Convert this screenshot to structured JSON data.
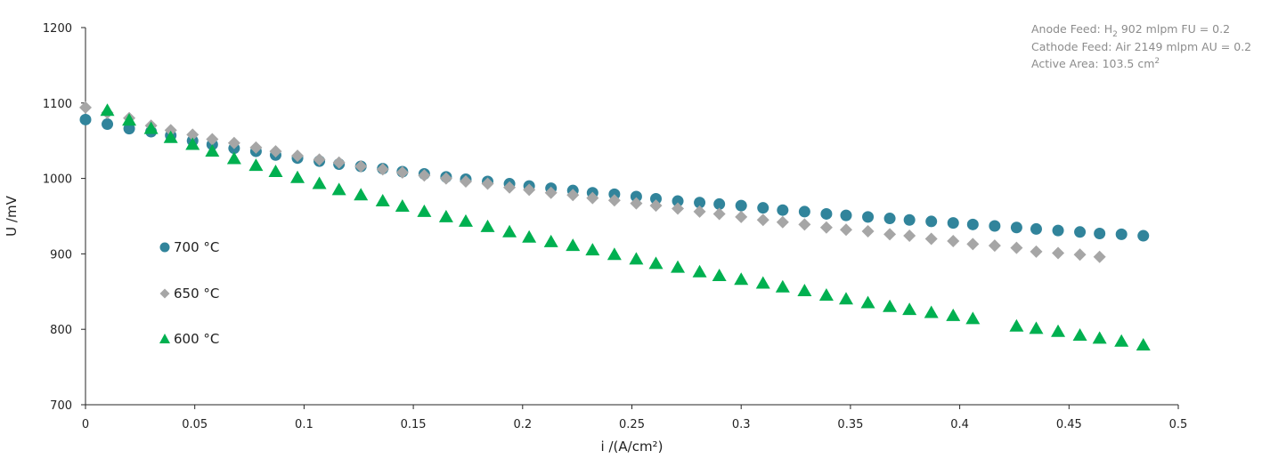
{
  "chart_data": {
    "type": "scatter",
    "xlabel": "i /(A/cm²)",
    "ylabel": "U /mV",
    "xlim": [
      0,
      0.5
    ],
    "ylim": [
      700,
      1200
    ],
    "x_ticks": [
      0,
      0.05,
      0.1,
      0.15,
      0.2,
      0.25,
      0.3,
      0.35,
      0.4,
      0.45,
      0.5
    ],
    "x_tick_labels": [
      "0",
      "0.05",
      "0.1",
      "0.15",
      "0.2",
      "0.25",
      "0.3",
      "0.35",
      "0.4",
      "0.45",
      "0.5"
    ],
    "y_ticks": [
      700,
      800,
      900,
      1000,
      1100,
      1200
    ],
    "y_tick_labels": [
      "700",
      "800",
      "900",
      "1000",
      "1100",
      "1200"
    ],
    "grid": false,
    "legend_position": "left",
    "series": [
      {
        "name": "700 °C",
        "marker": "circle",
        "color": "#31849b",
        "points": [
          [
            0,
            1078
          ],
          [
            0.01,
            1072
          ],
          [
            0.02,
            1066
          ],
          [
            0.03,
            1062
          ],
          [
            0.039,
            1057
          ],
          [
            0.049,
            1050
          ],
          [
            0.058,
            1045
          ],
          [
            0.068,
            1040
          ],
          [
            0.078,
            1036
          ],
          [
            0.087,
            1031
          ],
          [
            0.097,
            1027
          ],
          [
            0.107,
            1023
          ],
          [
            0.116,
            1019
          ],
          [
            0.126,
            1016
          ],
          [
            0.136,
            1013
          ],
          [
            0.145,
            1009
          ],
          [
            0.155,
            1006
          ],
          [
            0.165,
            1002
          ],
          [
            0.174,
            999
          ],
          [
            0.184,
            996
          ],
          [
            0.194,
            993
          ],
          [
            0.203,
            990
          ],
          [
            0.213,
            987
          ],
          [
            0.223,
            984
          ],
          [
            0.232,
            981
          ],
          [
            0.242,
            979
          ],
          [
            0.252,
            976
          ],
          [
            0.261,
            973
          ],
          [
            0.271,
            970
          ],
          [
            0.281,
            968
          ],
          [
            0.29,
            966
          ],
          [
            0.3,
            964
          ],
          [
            0.31,
            961
          ],
          [
            0.319,
            958
          ],
          [
            0.329,
            956
          ],
          [
            0.339,
            953
          ],
          [
            0.348,
            951
          ],
          [
            0.358,
            949
          ],
          [
            0.368,
            947
          ],
          [
            0.377,
            945
          ],
          [
            0.387,
            943
          ],
          [
            0.397,
            941
          ],
          [
            0.406,
            939
          ],
          [
            0.416,
            937
          ],
          [
            0.426,
            935
          ],
          [
            0.435,
            933
          ],
          [
            0.445,
            931
          ],
          [
            0.455,
            929
          ],
          [
            0.464,
            927
          ],
          [
            0.474,
            926
          ],
          [
            0.484,
            924
          ]
        ]
      },
      {
        "name": "650 °C",
        "marker": "diamond",
        "color": "#a6a6a6",
        "points": [
          [
            0,
            1094
          ],
          [
            0.01,
            1087
          ],
          [
            0.02,
            1080
          ],
          [
            0.03,
            1070
          ],
          [
            0.039,
            1064
          ],
          [
            0.049,
            1058
          ],
          [
            0.058,
            1052
          ],
          [
            0.068,
            1047
          ],
          [
            0.078,
            1041
          ],
          [
            0.087,
            1036
          ],
          [
            0.097,
            1030
          ],
          [
            0.107,
            1025
          ],
          [
            0.116,
            1021
          ],
          [
            0.126,
            1016
          ],
          [
            0.136,
            1012
          ],
          [
            0.145,
            1008
          ],
          [
            0.155,
            1004
          ],
          [
            0.165,
            1000
          ],
          [
            0.174,
            996
          ],
          [
            0.184,
            993
          ],
          [
            0.194,
            988
          ],
          [
            0.203,
            985
          ],
          [
            0.213,
            981
          ],
          [
            0.223,
            978
          ],
          [
            0.232,
            974
          ],
          [
            0.242,
            971
          ],
          [
            0.252,
            967
          ],
          [
            0.261,
            964
          ],
          [
            0.271,
            960
          ],
          [
            0.281,
            956
          ],
          [
            0.29,
            953
          ],
          [
            0.3,
            949
          ],
          [
            0.31,
            945
          ],
          [
            0.319,
            942
          ],
          [
            0.329,
            939
          ],
          [
            0.339,
            935
          ],
          [
            0.348,
            932
          ],
          [
            0.358,
            930
          ],
          [
            0.368,
            926
          ],
          [
            0.377,
            924
          ],
          [
            0.387,
            920
          ],
          [
            0.397,
            917
          ],
          [
            0.406,
            913
          ],
          [
            0.416,
            911
          ],
          [
            0.426,
            908
          ],
          [
            0.435,
            903
          ],
          [
            0.445,
            901
          ],
          [
            0.455,
            899
          ],
          [
            0.464,
            896
          ]
        ]
      },
      {
        "name": "600 °C",
        "marker": "triangle",
        "color": "#00b050",
        "points": [
          [
            0.01,
            1090
          ],
          [
            0.02,
            1077
          ],
          [
            0.03,
            1066
          ],
          [
            0.039,
            1054
          ],
          [
            0.049,
            1045
          ],
          [
            0.058,
            1036
          ],
          [
            0.068,
            1026
          ],
          [
            0.078,
            1017
          ],
          [
            0.087,
            1009
          ],
          [
            0.097,
            1001
          ],
          [
            0.107,
            993
          ],
          [
            0.116,
            985
          ],
          [
            0.126,
            978
          ],
          [
            0.136,
            970
          ],
          [
            0.145,
            963
          ],
          [
            0.155,
            956
          ],
          [
            0.165,
            949
          ],
          [
            0.174,
            943
          ],
          [
            0.184,
            936
          ],
          [
            0.194,
            929
          ],
          [
            0.203,
            922
          ],
          [
            0.213,
            916
          ],
          [
            0.223,
            911
          ],
          [
            0.232,
            905
          ],
          [
            0.242,
            899
          ],
          [
            0.252,
            893
          ],
          [
            0.261,
            887
          ],
          [
            0.271,
            882
          ],
          [
            0.281,
            876
          ],
          [
            0.29,
            871
          ],
          [
            0.3,
            866
          ],
          [
            0.31,
            861
          ],
          [
            0.319,
            856
          ],
          [
            0.329,
            851
          ],
          [
            0.339,
            845
          ],
          [
            0.348,
            840
          ],
          [
            0.358,
            835
          ],
          [
            0.368,
            830
          ],
          [
            0.377,
            826
          ],
          [
            0.387,
            822
          ],
          [
            0.397,
            818
          ],
          [
            0.406,
            814
          ],
          [
            0.426,
            804
          ],
          [
            0.435,
            801
          ],
          [
            0.445,
            797
          ],
          [
            0.455,
            792
          ],
          [
            0.464,
            788
          ],
          [
            0.474,
            784
          ],
          [
            0.484,
            779
          ]
        ]
      }
    ],
    "annotations": {
      "anode_prefix": "Anode Feed: H",
      "anode_subscript": "2",
      "anode_suffix": " 902 mlpm FU = 0.2",
      "cathode": "Cathode Feed: Air 2149 mlpm AU = 0.2",
      "area_prefix": "Active Area: 103.5 cm",
      "area_superscript": "2"
    }
  }
}
